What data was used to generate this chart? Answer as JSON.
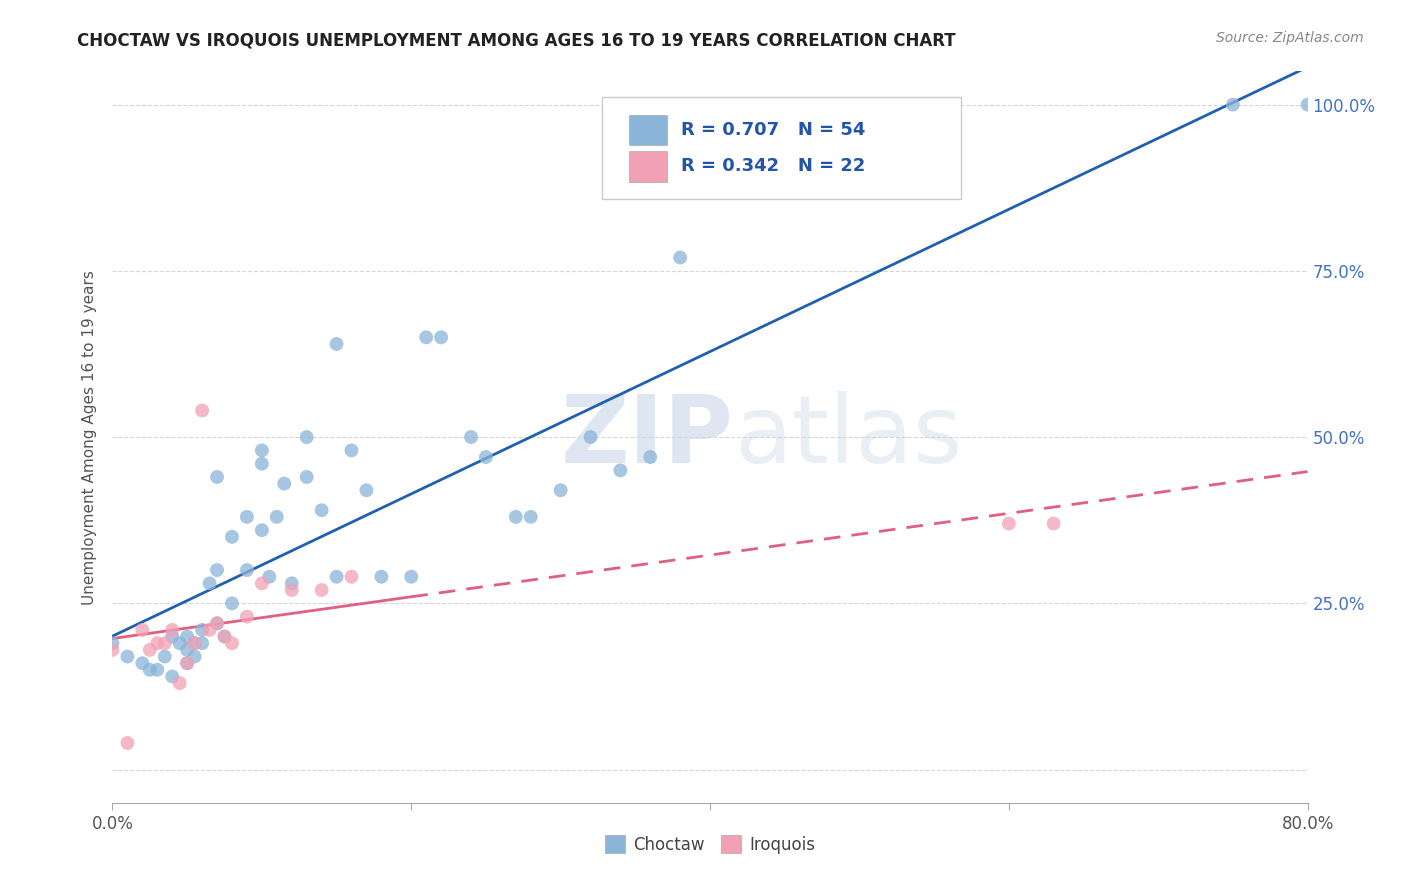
{
  "title": "CHOCTAW VS IROQUOIS UNEMPLOYMENT AMONG AGES 16 TO 19 YEARS CORRELATION CHART",
  "source": "Source: ZipAtlas.com",
  "ylabel": "Unemployment Among Ages 16 to 19 years",
  "xlim": [
    0.0,
    0.8
  ],
  "ylim": [
    -0.05,
    1.05
  ],
  "plot_ylim": [
    0.0,
    1.0
  ],
  "choctaw_color": "#8ab4d8",
  "iroquois_color": "#f2a0b4",
  "choctaw_line_color": "#2060b0",
  "iroquois_line_color": "#e06080",
  "choctaw_R": 0.707,
  "choctaw_N": 54,
  "iroquois_R": 0.342,
  "iroquois_N": 22,
  "background_color": "#ffffff",
  "choctaw_x": [
    0.0,
    0.01,
    0.02,
    0.025,
    0.03,
    0.035,
    0.04,
    0.04,
    0.045,
    0.05,
    0.05,
    0.05,
    0.055,
    0.055,
    0.06,
    0.06,
    0.065,
    0.07,
    0.07,
    0.07,
    0.075,
    0.08,
    0.08,
    0.09,
    0.09,
    0.1,
    0.1,
    0.1,
    0.105,
    0.11,
    0.115,
    0.12,
    0.13,
    0.13,
    0.14,
    0.15,
    0.15,
    0.16,
    0.17,
    0.18,
    0.2,
    0.21,
    0.22,
    0.24,
    0.25,
    0.27,
    0.28,
    0.3,
    0.32,
    0.34,
    0.36,
    0.38,
    0.75,
    0.8
  ],
  "choctaw_y": [
    0.19,
    0.17,
    0.16,
    0.15,
    0.15,
    0.17,
    0.14,
    0.2,
    0.19,
    0.16,
    0.18,
    0.2,
    0.17,
    0.19,
    0.19,
    0.21,
    0.28,
    0.22,
    0.3,
    0.44,
    0.2,
    0.25,
    0.35,
    0.3,
    0.38,
    0.36,
    0.46,
    0.48,
    0.29,
    0.38,
    0.43,
    0.28,
    0.44,
    0.5,
    0.39,
    0.29,
    0.64,
    0.48,
    0.42,
    0.29,
    0.29,
    0.65,
    0.65,
    0.5,
    0.47,
    0.38,
    0.38,
    0.42,
    0.5,
    0.45,
    0.47,
    0.77,
    1.0,
    1.0
  ],
  "iroquois_x": [
    0.0,
    0.01,
    0.02,
    0.025,
    0.03,
    0.035,
    0.04,
    0.045,
    0.05,
    0.055,
    0.06,
    0.065,
    0.07,
    0.075,
    0.08,
    0.09,
    0.1,
    0.12,
    0.14,
    0.16,
    0.6,
    0.63
  ],
  "iroquois_y": [
    0.18,
    0.04,
    0.21,
    0.18,
    0.19,
    0.19,
    0.21,
    0.13,
    0.16,
    0.19,
    0.54,
    0.21,
    0.22,
    0.2,
    0.19,
    0.23,
    0.28,
    0.27,
    0.27,
    0.29,
    0.37,
    0.37
  ]
}
